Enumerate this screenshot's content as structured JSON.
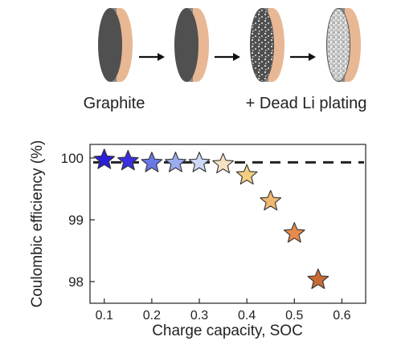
{
  "illustration": {
    "cells": [
      {
        "id": "cell-1",
        "state": "graphite"
      },
      {
        "id": "cell-2",
        "state": "graphite"
      },
      {
        "id": "cell-3",
        "state": "partial-plating"
      },
      {
        "id": "cell-4",
        "state": "heavy-plating"
      }
    ],
    "left_label": "Graphite",
    "right_label": "+ Dead Li plating",
    "colors": {
      "copper_backing": "#e8b894",
      "graphite_face": "#505050",
      "graphite_edge": "#8a8a8a",
      "plating_speckle": "#d6d6d6"
    }
  },
  "chart_data": {
    "type": "scatter",
    "marker": "star",
    "xlabel": "Charge capacity, SOC",
    "ylabel": "Coulombic efficiency (%)",
    "xlim": [
      0.07,
      0.65
    ],
    "ylim": [
      97.65,
      100.22
    ],
    "x_ticks": [
      0.1,
      0.2,
      0.3,
      0.4,
      0.5,
      0.6
    ],
    "x_tick_labels": [
      "0.1",
      "0.2",
      "0.3",
      "0.4",
      "0.5",
      "0.6"
    ],
    "y_ticks": [
      98,
      99,
      100
    ],
    "y_tick_labels": [
      "98",
      "99",
      "100"
    ],
    "reference_line": {
      "y": 99.93,
      "style": "dashed",
      "color": "#222222"
    },
    "points": [
      {
        "x": 0.1,
        "y": 99.97,
        "color": "#2b1fd8"
      },
      {
        "x": 0.15,
        "y": 99.95,
        "color": "#3a2ee0"
      },
      {
        "x": 0.2,
        "y": 99.92,
        "color": "#6a78e6"
      },
      {
        "x": 0.25,
        "y": 99.92,
        "color": "#9aabee"
      },
      {
        "x": 0.3,
        "y": 99.92,
        "color": "#ccd8f6"
      },
      {
        "x": 0.35,
        "y": 99.9,
        "color": "#f6e2c2"
      },
      {
        "x": 0.4,
        "y": 99.72,
        "color": "#f2cd84"
      },
      {
        "x": 0.45,
        "y": 99.3,
        "color": "#eeb870"
      },
      {
        "x": 0.5,
        "y": 98.78,
        "color": "#e78a4c"
      },
      {
        "x": 0.55,
        "y": 98.03,
        "color": "#c96a34"
      }
    ],
    "grid": false,
    "legend": "none"
  }
}
